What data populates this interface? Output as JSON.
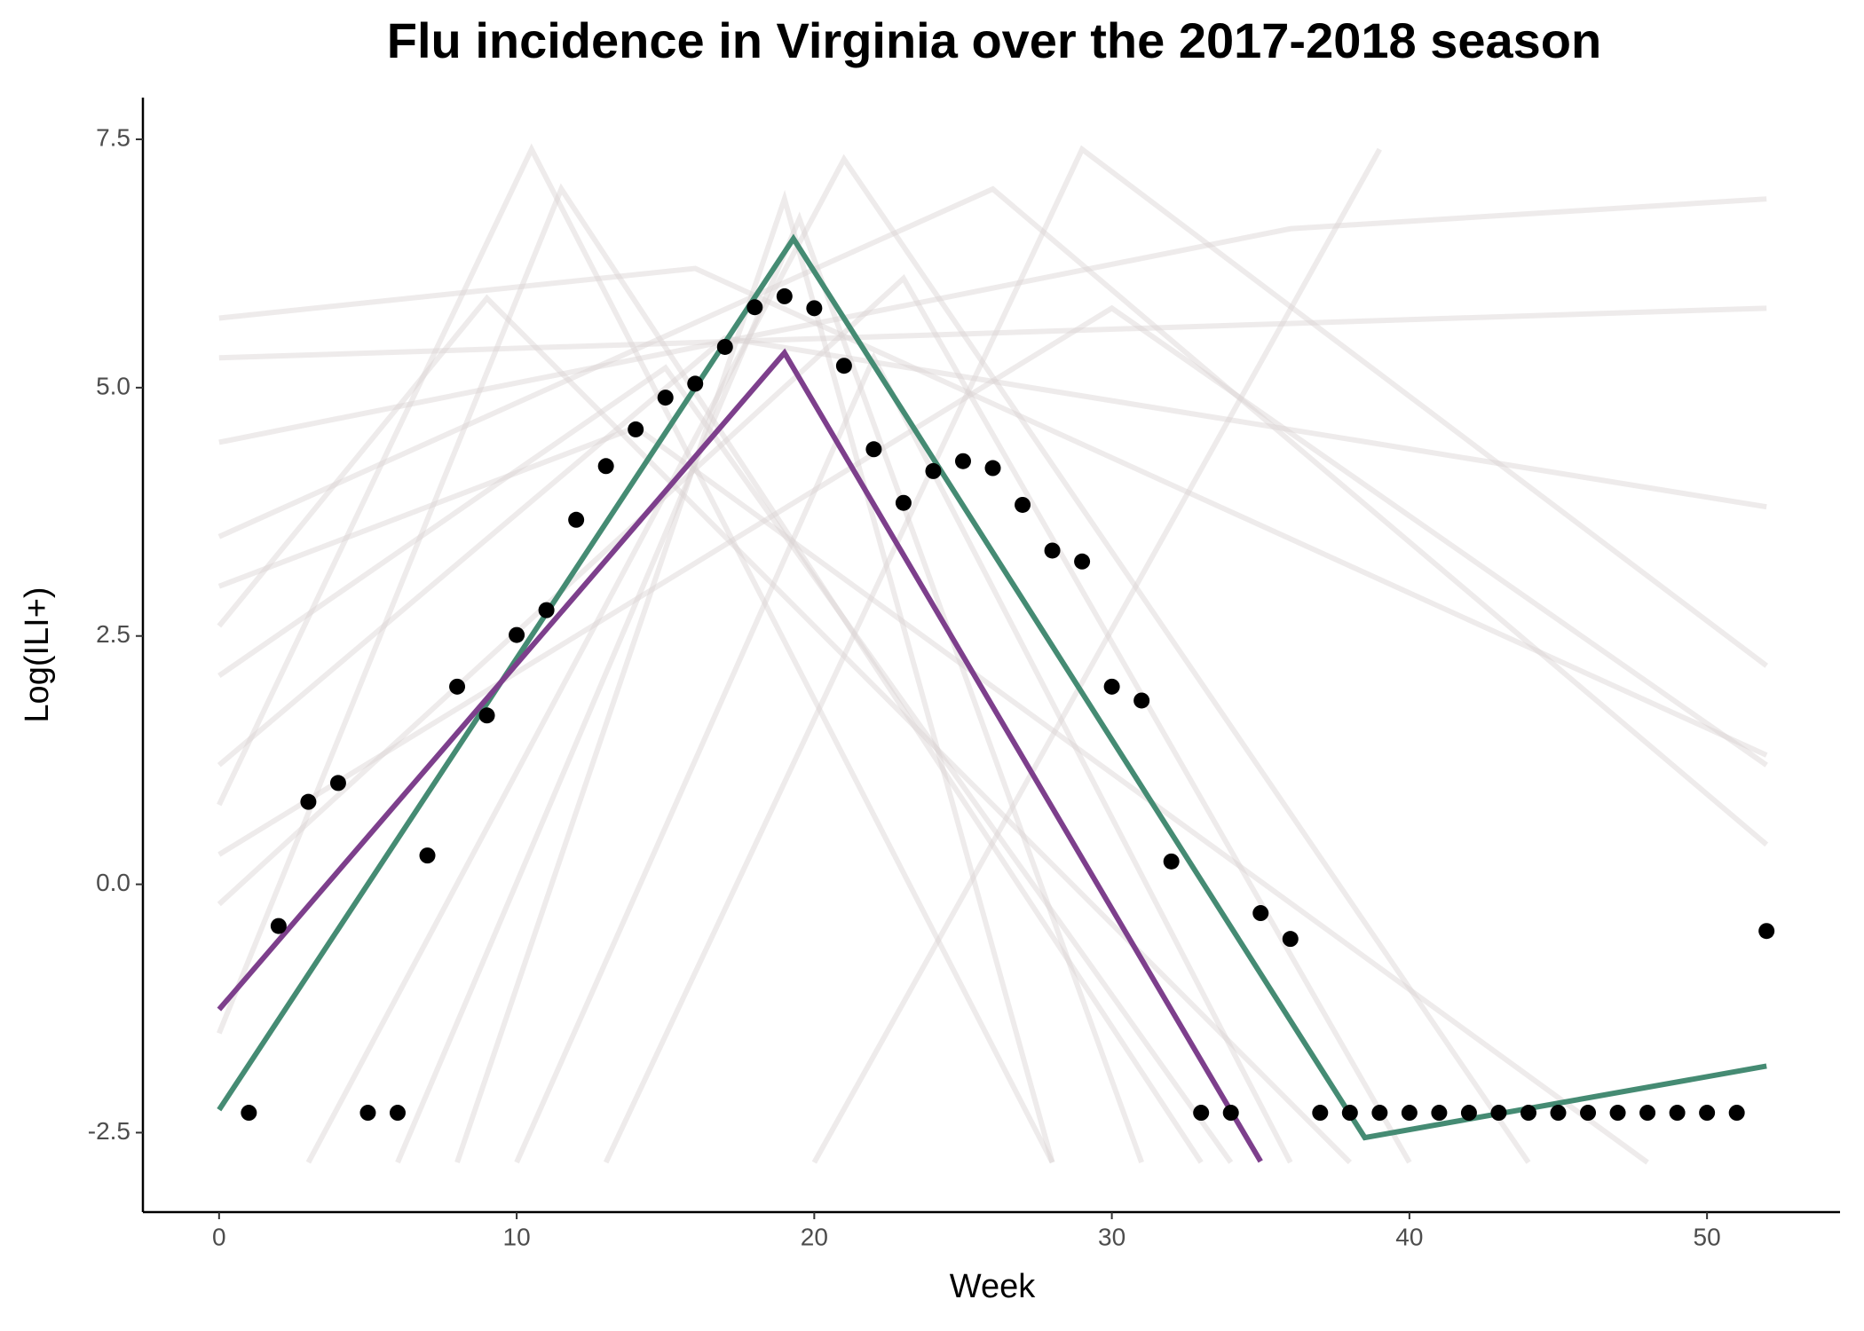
{
  "chart_data": {
    "type": "line",
    "title": "Flu incidence in Virginia over the 2017-2018 season",
    "x_label": "Week",
    "y_label": "Log(ILI+)",
    "xlim": [
      -2.56,
      54.47
    ],
    "ylim": [
      -3.3,
      7.92
    ],
    "xticks": [
      0,
      10,
      20,
      30,
      40,
      50
    ],
    "yticks": [
      7.5,
      {
        "value": 5,
        "label": "5.0"
      },
      2.5,
      {
        "value": 0,
        "label": "0.0"
      },
      -2.5
    ],
    "series": [
      {
        "type": "line",
        "color": "#d9d2d2",
        "x": [
          0,
          10.5,
          28
        ],
        "values": [
          0.8,
          7.4,
          -2.8
        ]
      },
      {
        "type": "line",
        "color": "#d9d2d2",
        "x": [
          0,
          11.5,
          33
        ],
        "values": [
          -1.5,
          7.0,
          -2.8
        ]
      },
      {
        "type": "line",
        "color": "#d9d2d2",
        "x": [
          0,
          16,
          52
        ],
        "values": [
          5.7,
          6.2,
          1.3
        ]
      },
      {
        "type": "line",
        "color": "#d9d2d2",
        "x": [
          0,
          36,
          52
        ],
        "values": [
          4.45,
          6.6,
          6.9
        ]
      },
      {
        "type": "line",
        "color": "#d9d2d2",
        "x": [
          0,
          9,
          38
        ],
        "values": [
          2.6,
          5.9,
          -2.8
        ]
      },
      {
        "type": "line",
        "color": "#d9d2d2",
        "x": [
          3,
          21,
          44
        ],
        "values": [
          -2.8,
          7.3,
          -2.8
        ]
      },
      {
        "type": "line",
        "color": "#d9d2d2",
        "x": [
          0,
          26,
          52
        ],
        "values": [
          3.5,
          7.0,
          0.4
        ]
      },
      {
        "type": "line",
        "color": "#d9d2d2",
        "x": [
          8,
          19,
          28
        ],
        "values": [
          -2.8,
          6.9,
          -2.8
        ]
      },
      {
        "type": "line",
        "color": "#d9d2d2",
        "x": [
          0,
          17,
          52
        ],
        "values": [
          1.2,
          5.5,
          3.8
        ]
      },
      {
        "type": "line",
        "color": "#d9d2d2",
        "x": [
          13,
          29,
          52
        ],
        "values": [
          -2.8,
          7.4,
          2.2
        ]
      },
      {
        "type": "line",
        "color": "#d9d2d2",
        "x": [
          0,
          23,
          40
        ],
        "values": [
          -0.2,
          6.1,
          -2.8
        ]
      },
      {
        "type": "line",
        "color": "#d9d2d2",
        "x": [
          0,
          15,
          34
        ],
        "values": [
          2.1,
          5.2,
          -2.8
        ]
      },
      {
        "type": "line",
        "color": "#d9d2d2",
        "x": [
          20,
          39
        ],
        "values": [
          -2.8,
          7.4
        ]
      },
      {
        "type": "line",
        "color": "#d9d2d2",
        "x": [
          0,
          52
        ],
        "values": [
          5.3,
          5.8
        ]
      },
      {
        "type": "line",
        "color": "#d9d2d2",
        "x": [
          6,
          19.5,
          31
        ],
        "values": [
          -2.8,
          6.7,
          -2.8
        ]
      },
      {
        "type": "line",
        "color": "#d9d2d2",
        "x": [
          0,
          14,
          48
        ],
        "values": [
          3.0,
          4.6,
          -2.8
        ]
      },
      {
        "type": "line",
        "color": "#d9d2d2",
        "x": [
          0,
          30,
          52
        ],
        "values": [
          0.3,
          5.8,
          1.2
        ]
      },
      {
        "type": "line",
        "color": "#d9d2d2",
        "x": [
          10,
          22,
          36
        ],
        "values": [
          -2.8,
          5.3,
          -2.8
        ]
      },
      {
        "type": "line",
        "color": "#458b73",
        "x": [
          0,
          19.3,
          38.5,
          52
        ],
        "values": [
          -2.27,
          6.5,
          -2.55,
          -1.83
        ]
      },
      {
        "type": "line",
        "color": "#7d3f8c",
        "x": [
          0,
          19,
          35
        ],
        "values": [
          -1.26,
          5.35,
          -2.79
        ]
      },
      {
        "type": "scatter",
        "color": "#000000",
        "x": [
          1,
          2,
          3,
          4,
          5,
          6,
          7,
          8,
          9,
          10,
          11,
          12,
          13,
          14,
          15,
          16,
          17,
          18,
          19,
          20,
          21,
          22,
          23,
          24,
          25,
          26,
          27,
          28,
          29,
          30,
          31,
          32,
          33,
          34,
          35,
          36,
          37,
          38,
          39,
          40,
          41,
          42,
          43,
          44,
          45,
          46,
          47,
          48,
          49,
          50,
          51,
          52
        ],
        "values": [
          -2.3,
          -0.42,
          0.83,
          1.02,
          -2.3,
          -2.3,
          0.29,
          1.99,
          1.7,
          2.51,
          2.76,
          3.67,
          4.21,
          4.58,
          4.9,
          5.04,
          5.41,
          5.81,
          5.92,
          5.8,
          5.22,
          4.38,
          3.84,
          4.16,
          4.26,
          4.19,
          3.82,
          3.36,
          3.25,
          1.99,
          1.85,
          0.23,
          -2.3,
          -2.3,
          -0.29,
          -0.55,
          -2.3,
          -2.3,
          -2.3,
          -2.3,
          -2.3,
          -2.3,
          -2.3,
          -2.3,
          -2.3,
          -2.3,
          -2.3,
          -2.3,
          -2.3,
          -2.3,
          -2.3,
          -0.47
        ]
      }
    ]
  }
}
